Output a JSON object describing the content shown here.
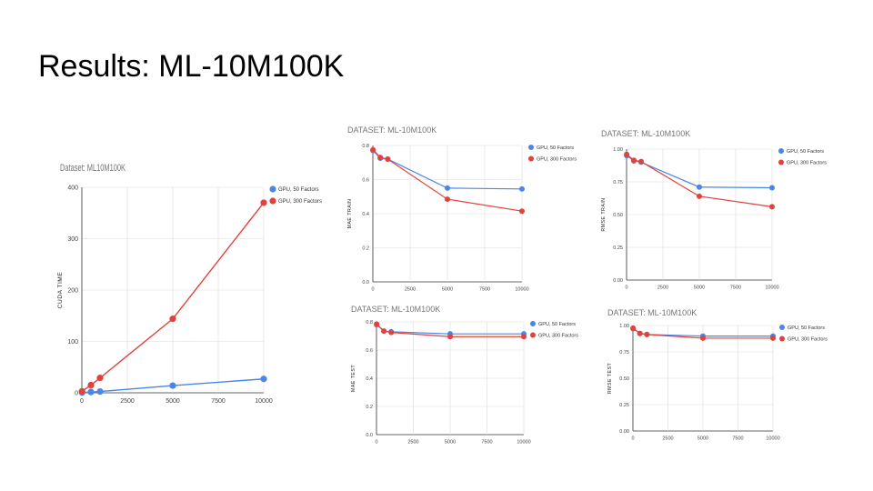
{
  "slide": {
    "title": "Results: ML-10M100K"
  },
  "colors": {
    "blue": "#4a86e8",
    "red": "#e0433b",
    "grid": "#dcdcdc",
    "axis": "#333333"
  },
  "chart_data": [
    {
      "id": "cuda",
      "type": "line",
      "title": "Dataset: ML10M100K",
      "ylabel": "CUDA TIME",
      "xlabel": "",
      "xlim": [
        0,
        10000
      ],
      "ylim": [
        0,
        400
      ],
      "xticks": [
        0,
        2500,
        5000,
        7500,
        10000
      ],
      "xtick_labels": [
        "0",
        "2500",
        "5000",
        "7500",
        "10000"
      ],
      "yticks": [
        0,
        100,
        200,
        300,
        400
      ],
      "ytick_labels": [
        "0",
        "100",
        "200",
        "300",
        "400"
      ],
      "grid": true,
      "legend": "top-right",
      "x": [
        10,
        500,
        1000,
        5000,
        10000
      ],
      "series": [
        {
          "name": "GPU, 50 Factors",
          "color": "#4a86e8",
          "values": [
            0.5,
            1.5,
            2.5,
            14,
            27
          ]
        },
        {
          "name": "GPU, 300 Factors",
          "color": "#e0433b",
          "values": [
            3,
            15,
            29,
            144,
            370
          ]
        }
      ]
    },
    {
      "id": "mae-train",
      "type": "line",
      "title": "DATASET: ML-10M100K",
      "ylabel": "MAE TRAIN",
      "xlabel": "",
      "xlim": [
        0,
        10000
      ],
      "ylim": [
        0,
        0.8
      ],
      "xticks": [
        0,
        2500,
        5000,
        7500,
        10000
      ],
      "xtick_labels": [
        "0",
        "2500",
        "5000",
        "7500",
        "10000"
      ],
      "yticks": [
        0,
        0.2,
        0.4,
        0.6,
        0.8
      ],
      "ytick_labels": [
        "0.0",
        "0.2",
        "0.4",
        "0.6",
        "0.8"
      ],
      "grid": true,
      "legend": "top-right",
      "x": [
        10,
        500,
        1000,
        5000,
        10000
      ],
      "series": [
        {
          "name": "GPU, 50 Factors",
          "color": "#4a86e8",
          "values": [
            0.77,
            0.725,
            0.72,
            0.55,
            0.545
          ]
        },
        {
          "name": "GPU, 300 Factors",
          "color": "#e0433b",
          "values": [
            0.775,
            0.73,
            0.72,
            0.485,
            0.415
          ]
        }
      ]
    },
    {
      "id": "rmse-train",
      "type": "line",
      "title": "DATASET: ML-10M100K",
      "ylabel": "RMSE TRAIN",
      "xlabel": "",
      "xlim": [
        0,
        10000
      ],
      "ylim": [
        0,
        1
      ],
      "xticks": [
        0,
        2500,
        5000,
        7500,
        10000
      ],
      "xtick_labels": [
        "0",
        "2500",
        "5000",
        "7500",
        "10000"
      ],
      "yticks": [
        0,
        0.25,
        0.5,
        0.75,
        1
      ],
      "ytick_labels": [
        "0.00",
        "0.25",
        "0.50",
        "0.75",
        "1.00"
      ],
      "grid": true,
      "legend": "top-right",
      "x": [
        10,
        500,
        1000,
        5000,
        10000
      ],
      "series": [
        {
          "name": "GPU, 50 Factors",
          "color": "#4a86e8",
          "values": [
            0.95,
            0.91,
            0.9,
            0.71,
            0.705
          ]
        },
        {
          "name": "GPU, 300 Factors",
          "color": "#e0433b",
          "values": [
            0.96,
            0.915,
            0.905,
            0.64,
            0.56
          ]
        }
      ]
    },
    {
      "id": "mae-test",
      "type": "line",
      "title": "DATASET: ML-10M100K",
      "ylabel": "MAE TEST",
      "xlabel": "",
      "xlim": [
        0,
        10000
      ],
      "ylim": [
        0,
        0.8
      ],
      "xticks": [
        0,
        2500,
        5000,
        7500,
        10000
      ],
      "xtick_labels": [
        "0",
        "2500",
        "5000",
        "7500",
        "10000"
      ],
      "yticks": [
        0,
        0.2,
        0.4,
        0.6,
        0.8
      ],
      "ytick_labels": [
        "0.0",
        "0.2",
        "0.4",
        "0.6",
        "0.8"
      ],
      "grid": true,
      "legend": "top-right",
      "x": [
        10,
        500,
        1000,
        5000,
        10000
      ],
      "series": [
        {
          "name": "GPU, 50 Factors",
          "color": "#4a86e8",
          "values": [
            0.78,
            0.735,
            0.73,
            0.715,
            0.715
          ]
        },
        {
          "name": "GPU, 300 Factors",
          "color": "#e0433b",
          "values": [
            0.785,
            0.735,
            0.725,
            0.695,
            0.695
          ]
        }
      ]
    },
    {
      "id": "rmse-test",
      "type": "line",
      "title": "DATASET: ML-10M100K",
      "ylabel": "RMSE TEST",
      "xlabel": "",
      "xlim": [
        0,
        10000
      ],
      "ylim": [
        0,
        1
      ],
      "xticks": [
        0,
        2500,
        5000,
        7500,
        10000
      ],
      "xtick_labels": [
        "0",
        "2500",
        "5000",
        "7500",
        "10000"
      ],
      "yticks": [
        0,
        0.25,
        0.5,
        0.75,
        1
      ],
      "ytick_labels": [
        "0.00",
        "0.25",
        "0.50",
        "0.75",
        "1.00"
      ],
      "grid": true,
      "legend": "top-right",
      "x": [
        10,
        500,
        1000,
        5000,
        10000
      ],
      "series": [
        {
          "name": "GPU, 50 Factors",
          "color": "#4a86e8",
          "values": [
            0.97,
            0.925,
            0.915,
            0.9,
            0.9
          ]
        },
        {
          "name": "GPU, 300 Factors",
          "color": "#e0433b",
          "values": [
            0.975,
            0.925,
            0.915,
            0.88,
            0.88
          ]
        }
      ]
    }
  ]
}
